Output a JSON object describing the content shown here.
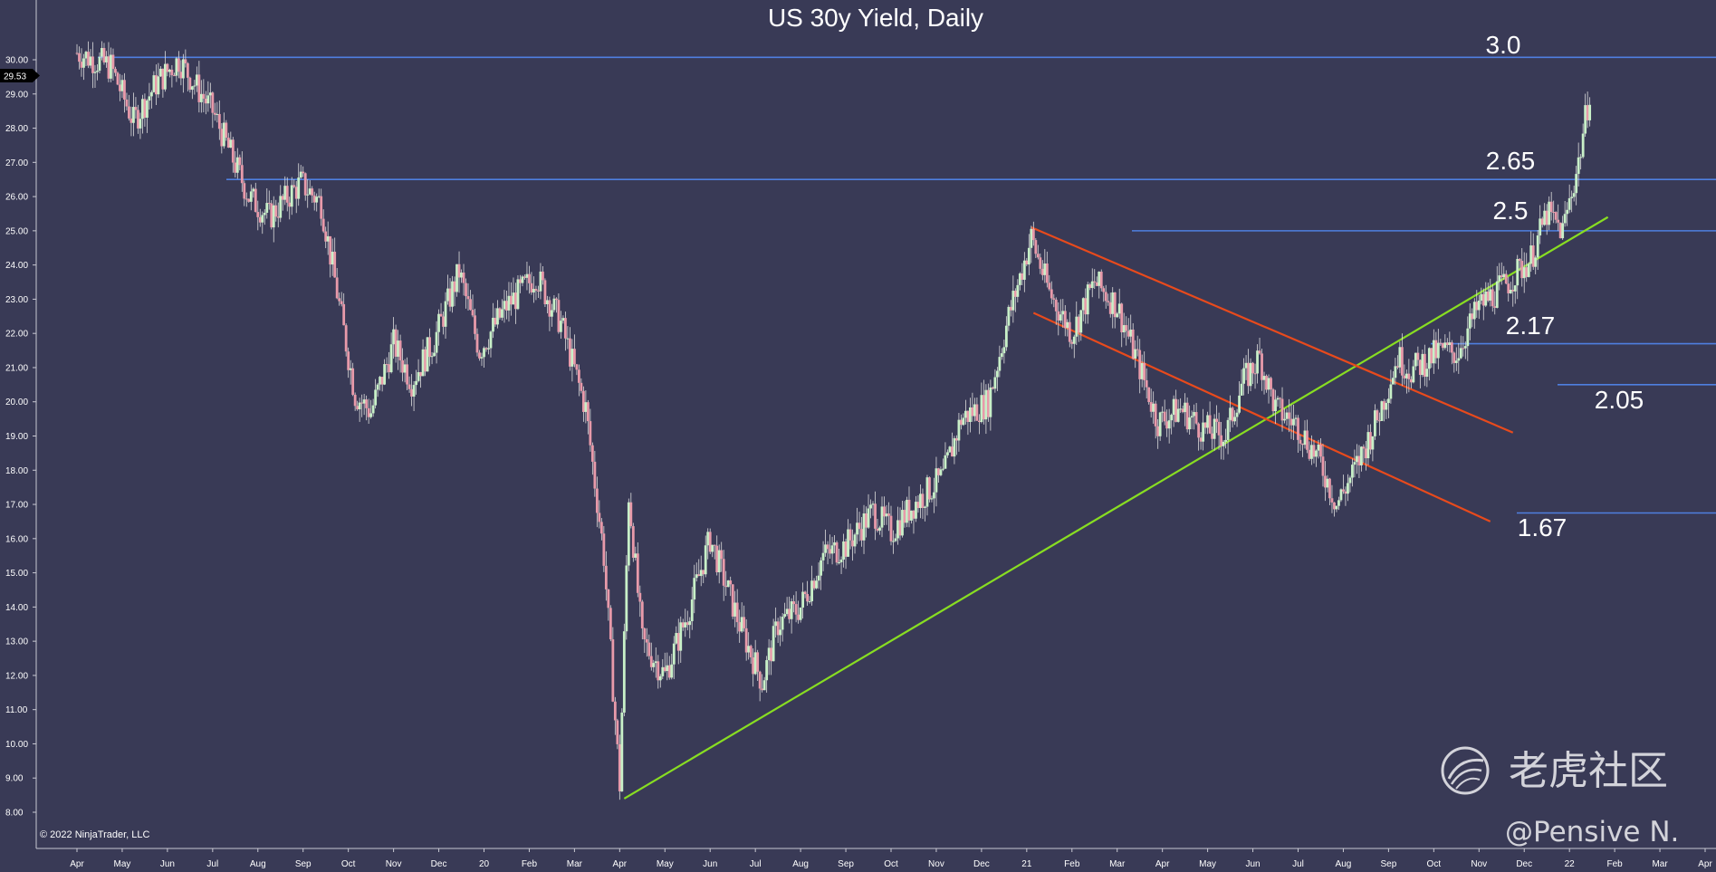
{
  "chart_data": {
    "type": "candlestick",
    "title": "US 30y Yield, Daily",
    "ylim": [
      7.5,
      32.2
    ],
    "grid": false,
    "y_ticks": [
      "8.00",
      "9.00",
      "10.00",
      "11.00",
      "12.00",
      "13.00",
      "14.00",
      "15.00",
      "16.00",
      "17.00",
      "18.00",
      "19.00",
      "20.00",
      "21.00",
      "22.00",
      "23.00",
      "24.00",
      "25.00",
      "26.00",
      "27.00",
      "28.00",
      "29.00",
      "30.00"
    ],
    "x_ticks": [
      "Apr",
      "May",
      "Jun",
      "Jul",
      "Aug",
      "Sep",
      "Oct",
      "Nov",
      "Dec",
      "20",
      "Feb",
      "Mar",
      "Apr",
      "May",
      "Jun",
      "Jul",
      "Aug",
      "Sep",
      "Oct",
      "Nov",
      "Dec",
      "21",
      "Feb",
      "Mar",
      "Apr",
      "May",
      "Jun",
      "Jul",
      "Aug",
      "Sep",
      "Oct",
      "Nov",
      "Dec",
      "22",
      "Feb",
      "Mar",
      "Apr"
    ],
    "current_value": "29.53",
    "price_path": [
      [
        0,
        30.2
      ],
      [
        1.5,
        29.8
      ],
      [
        2.5,
        28.2
      ],
      [
        3.5,
        29.3
      ],
      [
        4.5,
        30.0
      ],
      [
        6,
        28.5
      ],
      [
        7.6,
        26.0
      ],
      [
        8.5,
        25.4
      ],
      [
        9.9,
        26.4
      ],
      [
        10.8,
        25.8
      ],
      [
        11.5,
        23.2
      ],
      [
        12.3,
        20.2
      ],
      [
        13,
        19.7
      ],
      [
        14,
        21.7
      ],
      [
        14.8,
        20.6
      ],
      [
        15.8,
        21.8
      ],
      [
        16.9,
        23.8
      ],
      [
        17.8,
        21.5
      ],
      [
        19,
        22.8
      ],
      [
        20.3,
        23.7
      ],
      [
        21.4,
        22.3
      ],
      [
        22.5,
        19.8
      ],
      [
        23.3,
        15.5
      ],
      [
        24,
        8.8
      ],
      [
        24.4,
        17.3
      ],
      [
        25,
        13.0
      ],
      [
        26,
        12.0
      ],
      [
        27,
        13.8
      ],
      [
        28,
        16.0
      ],
      [
        29.3,
        13.5
      ],
      [
        30.3,
        11.8
      ],
      [
        31,
        13.5
      ],
      [
        32,
        14.0
      ],
      [
        33,
        15.5
      ],
      [
        34,
        15.8
      ],
      [
        35.2,
        16.8
      ],
      [
        36,
        16.2
      ],
      [
        37,
        17.0
      ],
      [
        38.3,
        17.8
      ],
      [
        39.1,
        19.5
      ],
      [
        40.3,
        20.0
      ],
      [
        41.2,
        22.5
      ],
      [
        42.2,
        24.8
      ],
      [
        43,
        23.2
      ],
      [
        44,
        22.0
      ],
      [
        45,
        23.5
      ],
      [
        46,
        22.8
      ],
      [
        47,
        21.0
      ],
      [
        47.8,
        19.4
      ],
      [
        48.8,
        19.8
      ],
      [
        49.8,
        19.2
      ],
      [
        50.8,
        19.0
      ],
      [
        51.5,
        20.5
      ],
      [
        52.3,
        21.3
      ],
      [
        53,
        19.8
      ],
      [
        54,
        19.3
      ],
      [
        55,
        18.2
      ],
      [
        55.7,
        17.0
      ],
      [
        56.5,
        18.0
      ],
      [
        57.5,
        19.5
      ],
      [
        58.4,
        21.3
      ],
      [
        59,
        20.9
      ],
      [
        60.3,
        21.5
      ],
      [
        61,
        21.4
      ],
      [
        62,
        22.8
      ],
      [
        63.3,
        23.5
      ],
      [
        64.3,
        24.2
      ],
      [
        65,
        25.5
      ],
      [
        65.7,
        25.0
      ],
      [
        66.4,
        27.0
      ],
      [
        67,
        29.5
      ]
    ],
    "levels": [
      {
        "label": "3.0",
        "value": 30.07
      },
      {
        "label": "2.65",
        "value": 26.5
      },
      {
        "label": "2.5",
        "value": 25.0
      },
      {
        "label": "2.17",
        "value": 21.7
      },
      {
        "label": "2.05",
        "value": 20.5
      },
      {
        "label": "1.67",
        "value": 16.75
      }
    ],
    "trendlines": [
      {
        "kind": "uptrend",
        "color": "#88dd22",
        "from": [
          24.2,
          8.4
        ],
        "to": [
          67.7,
          25.4
        ]
      },
      {
        "kind": "channel-upper",
        "color": "#e84a1c",
        "from": [
          42.2,
          25.1
        ],
        "to": [
          63.5,
          19.1
        ]
      },
      {
        "kind": "channel-lower",
        "color": "#e84a1c",
        "from": [
          42.3,
          22.6
        ],
        "to": [
          62.5,
          16.5
        ]
      }
    ],
    "colors": {
      "background": "#393a56",
      "level_line": "#4f7fe0",
      "candle_up": "#c8f0c8",
      "candle_down": "#e89aaa",
      "wick": "#dddddd"
    }
  },
  "footer": {
    "copyright": "© 2022 NinjaTrader, LLC"
  },
  "watermark": {
    "brand": "老虎社区",
    "handle": "@Pensive N."
  }
}
